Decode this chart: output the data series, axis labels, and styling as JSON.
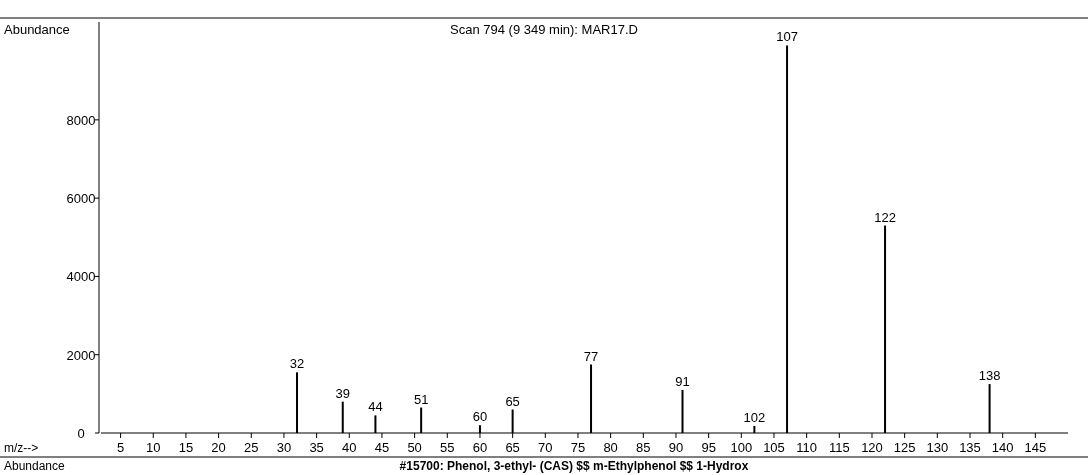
{
  "chart_data": {
    "type": "bar",
    "title": "Scan 794 (9 349 min): MAR17.D",
    "ylabel": "Abundance",
    "xlabel": "m/z-->",
    "x": [
      32,
      39,
      44,
      51,
      60,
      65,
      77,
      91,
      102,
      107,
      122,
      138
    ],
    "values": [
      1550,
      800,
      450,
      650,
      200,
      600,
      1750,
      1100,
      180,
      9900,
      5300,
      1250
    ],
    "color": "#000000",
    "xlim": [
      2,
      150
    ],
    "xticks": [
      5,
      10,
      15,
      20,
      25,
      30,
      35,
      40,
      45,
      50,
      55,
      60,
      65,
      70,
      75,
      80,
      85,
      90,
      95,
      100,
      105,
      110,
      115,
      120,
      125,
      130,
      135,
      140,
      145
    ],
    "ylim": [
      0,
      10500
    ],
    "yticks": [
      0,
      2000,
      4000,
      6000,
      8000
    ],
    "annotations": [
      "Abundance",
      "#15700: Phenol, 3-ethyl- (CAS) $$ m-Ethylphenol $$ 1-Hydrox",
      {
        "text": "32",
        "x": 32,
        "y": 1550
      },
      {
        "text": "39",
        "x": 39,
        "y": 800
      },
      {
        "text": "44",
        "x": 44,
        "y": 450
      },
      {
        "text": "51",
        "x": 51,
        "y": 650
      },
      {
        "text": "60",
        "x": 60,
        "y": 200
      },
      {
        "text": "65",
        "x": 65,
        "y": 600
      },
      {
        "text": "77",
        "x": 77,
        "y": 1750
      },
      {
        "text": "91",
        "x": 91,
        "y": 1100
      },
      {
        "text": "102",
        "x": 102,
        "y": 180
      },
      {
        "text": "107",
        "x": 107,
        "y": 9900
      },
      {
        "text": "122",
        "x": 122,
        "y": 5300
      },
      {
        "text": "138",
        "x": 138,
        "y": 1250
      }
    ]
  }
}
